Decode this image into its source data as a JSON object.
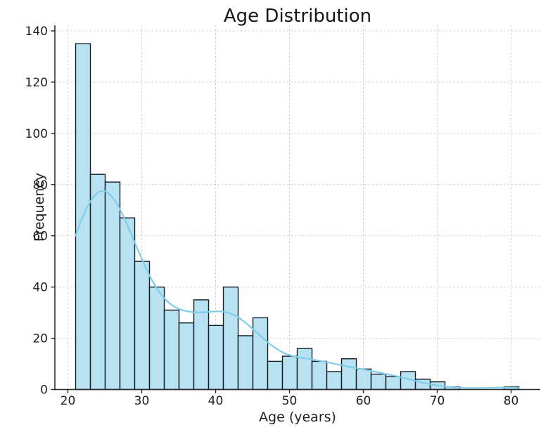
{
  "chart_data": {
    "type": "bar",
    "subtype": "histogram-with-kde",
    "title": "Age Distribution",
    "xlabel": "Age (years)",
    "ylabel": "Frequency",
    "x_ticks": [
      20,
      30,
      40,
      50,
      60,
      70,
      80
    ],
    "y_ticks": [
      0,
      20,
      40,
      60,
      80,
      100,
      120,
      140
    ],
    "xlim": [
      18.24,
      83.95
    ],
    "ylim": [
      0,
      142.2
    ],
    "grid": true,
    "grid_style": "dashed",
    "legend": "none",
    "bins": {
      "start": 21.05,
      "width": 2.0,
      "count": 30
    },
    "frequencies": [
      135,
      84,
      81,
      67,
      50,
      40,
      31,
      26,
      35,
      25,
      40,
      21,
      28,
      11,
      13,
      16,
      11,
      7,
      12,
      8,
      6,
      5,
      7,
      4,
      3,
      1,
      0,
      0,
      0,
      1
    ],
    "kde_points": [
      [
        21.05,
        60.0
      ],
      [
        21.5,
        63.8
      ],
      [
        22,
        67.3
      ],
      [
        22.5,
        70.5
      ],
      [
        23,
        73.2
      ],
      [
        23.5,
        75.3
      ],
      [
        24,
        76.8
      ],
      [
        24.5,
        77.5
      ],
      [
        25,
        77.4
      ],
      [
        25.5,
        76.6
      ],
      [
        26,
        75.2
      ],
      [
        26.5,
        73.2
      ],
      [
        27,
        70.7
      ],
      [
        27.5,
        67.8
      ],
      [
        28,
        64.6
      ],
      [
        28.5,
        61.2
      ],
      [
        29,
        57.8
      ],
      [
        29.5,
        54.4
      ],
      [
        30,
        51.0
      ],
      [
        30.5,
        47.8
      ],
      [
        31,
        44.8
      ],
      [
        31.5,
        42.1
      ],
      [
        32,
        39.7
      ],
      [
        32.5,
        37.6
      ],
      [
        33,
        35.8
      ],
      [
        33.5,
        34.3
      ],
      [
        34,
        33.1
      ],
      [
        34.5,
        32.2
      ],
      [
        35,
        31.5
      ],
      [
        35.5,
        31.0
      ],
      [
        36,
        30.6
      ],
      [
        36.5,
        30.4
      ],
      [
        37,
        30.2
      ],
      [
        37.5,
        30.1
      ],
      [
        38,
        30.1
      ],
      [
        38.5,
        30.2
      ],
      [
        39,
        30.3
      ],
      [
        39.5,
        30.4
      ],
      [
        40,
        30.5
      ],
      [
        40.5,
        30.5
      ],
      [
        41,
        30.4
      ],
      [
        41.5,
        30.1
      ],
      [
        42,
        29.7
      ],
      [
        42.5,
        29.1
      ],
      [
        43,
        28.3
      ],
      [
        43.5,
        27.3
      ],
      [
        44,
        26.2
      ],
      [
        44.5,
        25.0
      ],
      [
        45,
        23.7
      ],
      [
        45.5,
        22.4
      ],
      [
        46,
        21.1
      ],
      [
        46.5,
        19.8
      ],
      [
        47,
        18.6
      ],
      [
        47.5,
        17.4
      ],
      [
        48,
        16.4
      ],
      [
        48.5,
        15.4
      ],
      [
        49,
        14.6
      ],
      [
        49.5,
        13.9
      ],
      [
        50,
        13.4
      ],
      [
        50.5,
        13.0
      ],
      [
        51,
        12.7
      ],
      [
        51.5,
        12.4
      ],
      [
        52,
        12.2
      ],
      [
        52.5,
        12.0
      ],
      [
        53,
        11.8
      ],
      [
        53.5,
        11.5
      ],
      [
        54,
        11.3
      ],
      [
        54.5,
        11.0
      ],
      [
        55,
        10.7
      ],
      [
        55.5,
        10.4
      ],
      [
        56,
        10.1
      ],
      [
        56.5,
        9.8
      ],
      [
        57,
        9.5
      ],
      [
        57.5,
        9.2
      ],
      [
        58,
        8.9
      ],
      [
        58.5,
        8.6
      ],
      [
        59,
        8.4
      ],
      [
        59.5,
        8.1
      ],
      [
        60,
        7.9
      ],
      [
        60.5,
        7.6
      ],
      [
        61,
        7.3
      ],
      [
        61.5,
        7.0
      ],
      [
        62,
        6.7
      ],
      [
        62.5,
        6.4
      ],
      [
        63,
        6.1
      ],
      [
        63.5,
        5.8
      ],
      [
        64,
        5.5
      ],
      [
        64.5,
        5.2
      ],
      [
        65,
        4.8
      ],
      [
        65.5,
        4.5
      ],
      [
        66,
        4.1
      ],
      [
        66.5,
        3.8
      ],
      [
        67,
        3.4
      ],
      [
        67.5,
        3.1
      ],
      [
        68,
        2.7
      ],
      [
        68.5,
        2.4
      ],
      [
        69,
        2.1
      ],
      [
        69.5,
        1.9
      ],
      [
        70,
        1.6
      ],
      [
        70.5,
        1.4
      ],
      [
        71,
        1.2
      ],
      [
        71.5,
        1.0
      ],
      [
        72,
        0.9
      ],
      [
        72.5,
        0.8
      ],
      [
        73,
        0.7
      ],
      [
        73.5,
        0.65
      ],
      [
        74,
        0.6
      ],
      [
        74.5,
        0.6
      ],
      [
        75,
        0.6
      ],
      [
        75.5,
        0.6
      ],
      [
        76,
        0.6
      ],
      [
        76.5,
        0.62
      ],
      [
        77,
        0.65
      ],
      [
        77.5,
        0.68
      ],
      [
        78,
        0.7
      ],
      [
        78.5,
        0.72
      ],
      [
        79,
        0.73
      ],
      [
        79.5,
        0.73
      ],
      [
        80,
        0.72
      ],
      [
        80.5,
        0.68
      ],
      [
        81.05,
        0.6
      ]
    ],
    "colors": {
      "bar_fill": "#b8e1f1",
      "bar_edge": "#141d26",
      "kde_line": "#7fcde9",
      "grid": "#cbcbcb",
      "spine": "#262626",
      "tick_label": "#1f1f1f",
      "title": "#171717",
      "background": "#ffffff"
    }
  }
}
